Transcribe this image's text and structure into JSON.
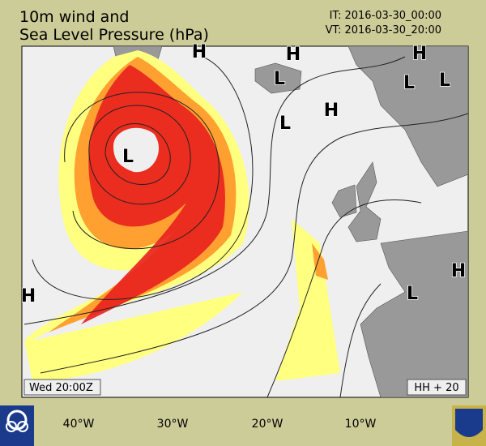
{
  "header": {
    "title_line1": "10m wind and",
    "title_line2": "Sea Level Pressure (hPa)",
    "it": "IT: 2016-03-30_00:00",
    "vt": "VT: 2016-03-30_20:00"
  },
  "map": {
    "pressure_centers": [
      "H",
      "H",
      "H",
      "L",
      "L",
      "L",
      "H",
      "L",
      "L",
      "H",
      "L",
      "H"
    ],
    "longitude_labels": [
      "40°W",
      "30°W",
      "20°W",
      "10°W"
    ]
  },
  "footer": {
    "day_time": "Wed 20:00Z",
    "forecast_hour": "HH + 20"
  }
}
